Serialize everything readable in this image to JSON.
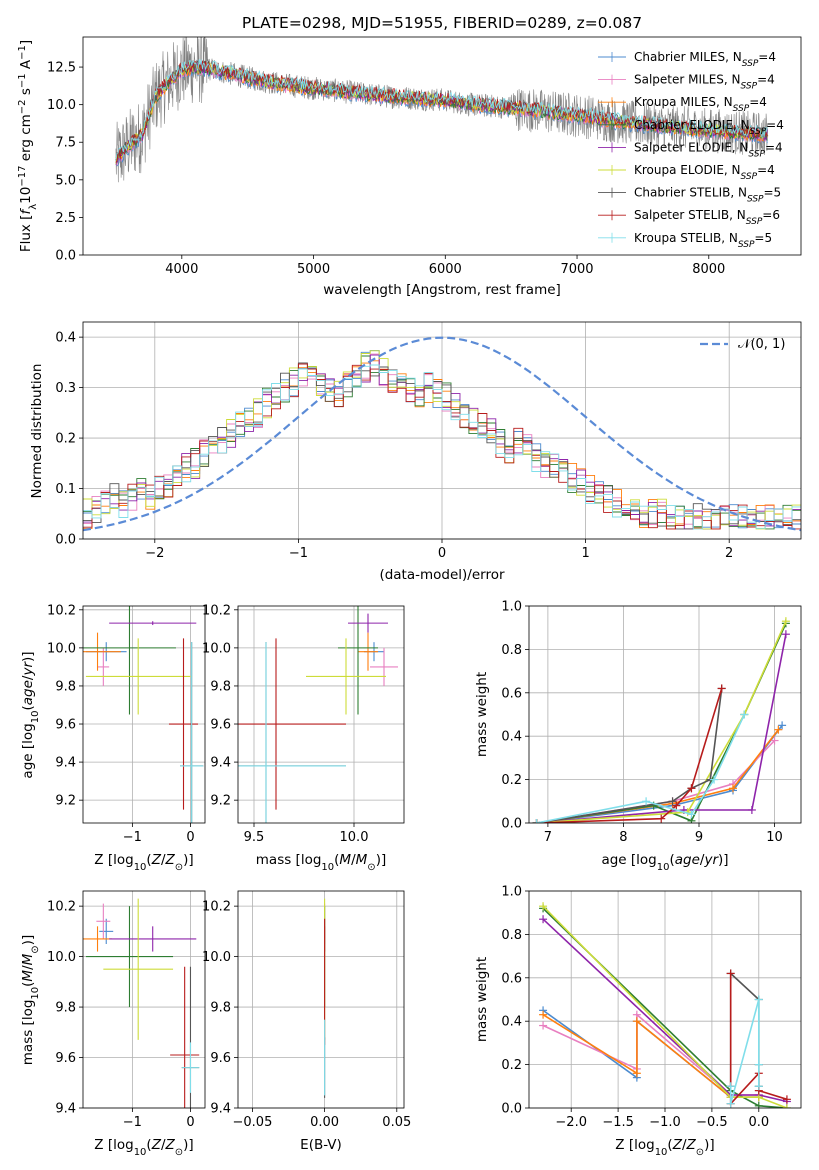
{
  "colors": {
    "chabrier_miles": "#4c8bcf",
    "salpeter_miles": "#e87fc0",
    "kroupa_miles": "#ff7f0e",
    "chabrier_elodie": "#2e7d32",
    "salpeter_elodie": "#8e24aa",
    "kroupa_elodie": "#cddc39",
    "chabrier_stelib": "#555555",
    "salpeter_stelib": "#b71c1c",
    "kroupa_stelib": "#80deea",
    "observed": "#808080",
    "gaussian": "#5b8bd6"
  },
  "chart_data": [
    {
      "type": "line",
      "title": "PLATE=0298, MJD=51955, FIBERID=0289, z=0.087",
      "xlabel": "wavelength [Angstrom, rest frame]",
      "ylabel": "Flux [f_λ 10^-17 erg cm^-2 s^-1 A^-1]",
      "ylabel_parts": [
        "Flux [",
        "f",
        "λ",
        "10",
        "−17",
        " erg cm",
        "−2",
        " s",
        "−1",
        " A",
        "−1",
        "]"
      ],
      "xlim": [
        3250,
        8700
      ],
      "ylim": [
        0,
        14.5
      ],
      "xticks": [
        4000,
        5000,
        6000,
        7000,
        8000
      ],
      "yticks": [
        0.0,
        2.5,
        5.0,
        7.5,
        10.0,
        12.5
      ],
      "series_names": [
        "Chabrier MILES, N_SSP=4",
        "Salpeter MILES, N_SSP=4",
        "Kroupa MILES, N_SSP=4",
        "Chabrier ELODIE, N_SSP=4",
        "Salpeter ELODIE, N_SSP=4",
        "Kroupa ELODIE, N_SSP=4",
        "Chabrier STELIB, N_SSP=5",
        "Salpeter STELIB, N_SSP=6",
        "Kroupa STELIB, N_SSP=5"
      ],
      "legend": [
        {
          "base": "Chabrier MILES, N",
          "sub": "SSP",
          "tail": "=4",
          "color_key": "chabrier_miles"
        },
        {
          "base": "Salpeter MILES, N",
          "sub": "SSP",
          "tail": "=4",
          "color_key": "salpeter_miles"
        },
        {
          "base": "Kroupa MILES, N",
          "sub": "SSP",
          "tail": "=4",
          "color_key": "kroupa_miles"
        },
        {
          "base": "Chabrier ELODIE, N",
          "sub": "SSP",
          "tail": "=4",
          "color_key": "chabrier_elodie"
        },
        {
          "base": "Salpeter ELODIE, N",
          "sub": "SSP",
          "tail": "=4",
          "color_key": "salpeter_elodie"
        },
        {
          "base": "Kroupa ELODIE, N",
          "sub": "SSP",
          "tail": "=4",
          "color_key": "kroupa_elodie"
        },
        {
          "base": "Chabrier STELIB, N",
          "sub": "SSP",
          "tail": "=5",
          "color_key": "chabrier_stelib"
        },
        {
          "base": "Salpeter STELIB, N",
          "sub": "SSP",
          "tail": "=6",
          "color_key": "salpeter_stelib"
        },
        {
          "base": "Kroupa STELIB, N",
          "sub": "SSP",
          "tail": "=5",
          "color_key": "kroupa_stelib"
        }
      ],
      "legend_position": "upper right",
      "grid": false,
      "observed_range": [
        3500,
        8450
      ],
      "model_curve": {
        "x": [
          3500,
          3600,
          3700,
          3800,
          3900,
          4000,
          4100,
          4200,
          4400,
          4600,
          4800,
          5000,
          5200,
          5500,
          5800,
          6000,
          6200,
          6500,
          6800,
          7000,
          7300,
          7600,
          8000,
          8300,
          8450
        ],
        "y": [
          6.3,
          7.3,
          8.0,
          10.5,
          11.5,
          12.3,
          12.5,
          12.4,
          12.0,
          11.6,
          11.3,
          11.1,
          10.9,
          10.6,
          10.4,
          10.3,
          10.0,
          9.8,
          9.5,
          9.3,
          8.9,
          8.6,
          8.3,
          8.1,
          8.0
        ]
      }
    },
    {
      "type": "step",
      "xlabel": "(data-model)/error",
      "ylabel": "Normed distribution",
      "xlim": [
        -2.5,
        2.5
      ],
      "ylim": [
        0,
        0.43
      ],
      "xticks": [
        -2,
        -1,
        0,
        1,
        2
      ],
      "yticks": [
        0.0,
        0.1,
        0.2,
        0.3,
        0.4
      ],
      "grid": true,
      "legend": [
        "𝒩(0, 1)"
      ],
      "legend_position": "upper right",
      "bin_width": 0.1,
      "bin_start": -2.5,
      "base_histogram": [
        0.05,
        0.06,
        0.07,
        0.08,
        0.07,
        0.08,
        0.09,
        0.08,
        0.1,
        0.11,
        0.12,
        0.14,
        0.15,
        0.17,
        0.18,
        0.2,
        0.21,
        0.23,
        0.24,
        0.25,
        0.27,
        0.28,
        0.3,
        0.31,
        0.32,
        0.32,
        0.31,
        0.3,
        0.29,
        0.31,
        0.33,
        0.34,
        0.35,
        0.33,
        0.31,
        0.3,
        0.29,
        0.28,
        0.3,
        0.29,
        0.28,
        0.26,
        0.24,
        0.23,
        0.22,
        0.21,
        0.19,
        0.18,
        0.19,
        0.18,
        0.16,
        0.15,
        0.14,
        0.13,
        0.12,
        0.11,
        0.1,
        0.09,
        0.08,
        0.07,
        0.06,
        0.06,
        0.05,
        0.05,
        0.05,
        0.04,
        0.04,
        0.04,
        0.04,
        0.04,
        0.04,
        0.04,
        0.04,
        0.04,
        0.04,
        0.04,
        0.04,
        0.04,
        0.04,
        0.04
      ]
    },
    {
      "type": "errorbar",
      "xlabel": "Z [log10(Z/Z⊙)]",
      "ylabel": "age [log10(age/yr)]",
      "xlim": [
        -1.85,
        0.25
      ],
      "ylim": [
        9.08,
        10.22
      ],
      "xticks": [
        -1,
        0
      ],
      "yticks": [
        9.2,
        9.4,
        9.6,
        9.8,
        10.0,
        10.2
      ],
      "grid": true,
      "points": [
        {
          "k": "chabrier_miles",
          "x": -1.45,
          "xerr": 0.35,
          "y": 9.98,
          "yerr": 0.05
        },
        {
          "k": "salpeter_miles",
          "x": -1.5,
          "xerr": 0.1,
          "y": 9.9,
          "yerr": 0.1
        },
        {
          "k": "kroupa_miles",
          "x": -1.6,
          "xerr": 0.4,
          "y": 9.98,
          "yerr": 0.1
        },
        {
          "k": "chabrier_elodie",
          "x": -1.05,
          "xerr": 0.8,
          "y": 10.0,
          "yerr": 0.35
        },
        {
          "k": "salpeter_elodie",
          "x": -0.65,
          "xerr": 0.75,
          "y": 10.13,
          "yerr": 0.01
        },
        {
          "k": "kroupa_elodie",
          "x": -0.9,
          "xerr": 0.9,
          "y": 9.85,
          "yerr": 0.2
        },
        {
          "k": "chabrier_stelib",
          "x": 0.02,
          "xerr": 0.2,
          "y": 9.38,
          "yerr": 0.65
        },
        {
          "k": "salpeter_stelib",
          "x": -0.12,
          "xerr": 0.25,
          "y": 9.6,
          "yerr": 0.45
        },
        {
          "k": "kroupa_stelib",
          "x": 0.02,
          "xerr": 0.2,
          "y": 9.38,
          "yerr": 0.65
        }
      ]
    },
    {
      "type": "errorbar",
      "xlabel": "mass [log10(M/M⊙)]",
      "ylabel": "",
      "xlim": [
        9.42,
        10.25
      ],
      "ylim": [
        9.08,
        10.22
      ],
      "xticks": [
        9.5,
        10.0
      ],
      "yticks": [
        9.2,
        9.4,
        9.6,
        9.8,
        10.0,
        10.2
      ],
      "grid": true,
      "points": [
        {
          "k": "chabrier_miles",
          "x": 10.1,
          "xerr": 0.05,
          "y": 9.98,
          "yerr": 0.05
        },
        {
          "k": "salpeter_miles",
          "x": 10.15,
          "xerr": 0.07,
          "y": 9.9,
          "yerr": 0.1
        },
        {
          "k": "kroupa_miles",
          "x": 10.07,
          "xerr": 0.05,
          "y": 9.98,
          "yerr": 0.1
        },
        {
          "k": "chabrier_elodie",
          "x": 10.02,
          "xerr": 0.1,
          "y": 10.0,
          "yerr": 0.35
        },
        {
          "k": "salpeter_elodie",
          "x": 10.07,
          "xerr": 0.1,
          "y": 10.13,
          "yerr": 0.05
        },
        {
          "k": "kroupa_elodie",
          "x": 9.96,
          "xerr": 0.2,
          "y": 9.85,
          "yerr": 0.2
        },
        {
          "k": "chabrier_stelib",
          "x": 9.56,
          "xerr": 0.4,
          "y": 9.38,
          "yerr": 0.65
        },
        {
          "k": "salpeter_stelib",
          "x": 9.61,
          "xerr": 0.35,
          "y": 9.6,
          "yerr": 0.45
        },
        {
          "k": "kroupa_stelib",
          "x": 9.56,
          "xerr": 0.4,
          "y": 9.38,
          "yerr": 0.65
        }
      ]
    },
    {
      "type": "line",
      "xlabel": "age [log10(age/yr)]",
      "ylabel": "mass weight",
      "xlim": [
        6.75,
        10.35
      ],
      "ylim": [
        0,
        1.0
      ],
      "xticks": [
        7,
        8,
        9,
        10
      ],
      "yticks": [
        0.0,
        0.2,
        0.4,
        0.6,
        0.8,
        1.0
      ],
      "grid": true,
      "series": [
        {
          "k": "chabrier_miles",
          "x": [
            6.85,
            8.65,
            9.45,
            10.1
          ],
          "y": [
            0.0,
            0.08,
            0.15,
            0.45
          ]
        },
        {
          "k": "salpeter_miles",
          "x": [
            6.85,
            8.65,
            9.45,
            10.0
          ],
          "y": [
            0.0,
            0.1,
            0.18,
            0.38
          ]
        },
        {
          "k": "kroupa_miles",
          "x": [
            6.85,
            8.65,
            9.45,
            10.05
          ],
          "y": [
            0.0,
            0.09,
            0.16,
            0.43
          ]
        },
        {
          "k": "chabrier_elodie",
          "x": [
            6.85,
            8.4,
            8.9,
            9.6,
            10.15
          ],
          "y": [
            0.0,
            0.08,
            0.01,
            0.5,
            0.92
          ]
        },
        {
          "k": "salpeter_elodie",
          "x": [
            6.85,
            8.8,
            9.7,
            10.15
          ],
          "y": [
            0.0,
            0.06,
            0.06,
            0.87
          ]
        },
        {
          "k": "kroupa_elodie",
          "x": [
            6.85,
            8.85,
            9.6,
            10.15
          ],
          "y": [
            0.0,
            0.05,
            0.5,
            0.93
          ]
        },
        {
          "k": "chabrier_stelib",
          "x": [
            6.85,
            8.65,
            8.9,
            9.15,
            9.3
          ],
          "y": [
            0.0,
            0.1,
            0.16,
            0.2,
            0.62
          ]
        },
        {
          "k": "salpeter_stelib",
          "x": [
            6.85,
            8.5,
            8.7,
            8.9,
            9.3
          ],
          "y": [
            0.0,
            0.02,
            0.08,
            0.16,
            0.62
          ]
        },
        {
          "k": "kroupa_stelib",
          "x": [
            6.85,
            8.3,
            8.9,
            9.2,
            9.6
          ],
          "y": [
            0.0,
            0.1,
            0.04,
            0.2,
            0.5
          ]
        }
      ]
    },
    {
      "type": "errorbar",
      "xlabel": "Z [log10(Z/Z⊙)]",
      "ylabel": "mass [log10(M/M⊙)]",
      "xlim": [
        -1.85,
        0.25
      ],
      "ylim": [
        9.4,
        10.26
      ],
      "xticks": [
        -1,
        0
      ],
      "yticks": [
        9.4,
        9.6,
        9.8,
        10.0,
        10.2
      ],
      "grid": true,
      "points": [
        {
          "k": "chabrier_miles",
          "x": -1.45,
          "xerr": 0.12,
          "y": 10.1,
          "yerr": 0.05
        },
        {
          "k": "salpeter_miles",
          "x": -1.5,
          "xerr": 0.12,
          "y": 10.14,
          "yerr": 0.07
        },
        {
          "k": "kroupa_miles",
          "x": -1.6,
          "xerr": 0.25,
          "y": 10.07,
          "yerr": 0.05
        },
        {
          "k": "chabrier_elodie",
          "x": -1.05,
          "xerr": 0.75,
          "y": 10.0,
          "yerr": 0.2
        },
        {
          "k": "salpeter_elodie",
          "x": -0.65,
          "xerr": 0.75,
          "y": 10.07,
          "yerr": 0.05
        },
        {
          "k": "kroupa_elodie",
          "x": -0.9,
          "xerr": 0.6,
          "y": 9.95,
          "yerr": 0.28
        },
        {
          "k": "chabrier_stelib",
          "x": 0.0,
          "xerr": 0.15,
          "y": 9.56,
          "yerr": 0.4
        },
        {
          "k": "salpeter_stelib",
          "x": -0.1,
          "xerr": 0.25,
          "y": 9.61,
          "yerr": 0.35
        },
        {
          "k": "kroupa_stelib",
          "x": 0.0,
          "xerr": 0.15,
          "y": 9.56,
          "yerr": 0.1
        }
      ]
    },
    {
      "type": "errorbar",
      "xlabel": "E(B-V)",
      "ylabel": "",
      "xlim": [
        -0.06,
        0.055
      ],
      "ylim": [
        9.4,
        10.26
      ],
      "xticks": [
        -0.05,
        0.0,
        0.05
      ],
      "yticks": [
        9.4,
        9.6,
        9.8,
        10.0,
        10.2
      ],
      "grid": true,
      "points": [
        {
          "k": "chabrier_miles",
          "x": 0.0,
          "xerr": 0.0,
          "y": 10.1,
          "yerr": 0.05
        },
        {
          "k": "salpeter_miles",
          "x": 0.0,
          "xerr": 0.0,
          "y": 10.14,
          "yerr": 0.07
        },
        {
          "k": "kroupa_miles",
          "x": 0.0,
          "xerr": 0.0,
          "y": 10.07,
          "yerr": 0.05
        },
        {
          "k": "chabrier_elodie",
          "x": 0.0,
          "xerr": 0.0,
          "y": 10.0,
          "yerr": 0.2
        },
        {
          "k": "salpeter_elodie",
          "x": 0.0,
          "xerr": 0.0,
          "y": 10.07,
          "yerr": 0.05
        },
        {
          "k": "kroupa_elodie",
          "x": 0.0,
          "xerr": 0.0,
          "y": 9.95,
          "yerr": 0.28
        },
        {
          "k": "chabrier_stelib",
          "x": 0.0,
          "xerr": 0.0,
          "y": 9.56,
          "yerr": 0.12
        },
        {
          "k": "salpeter_stelib",
          "x": 0.0,
          "xerr": 0.0,
          "y": 9.9,
          "yerr": 0.25
        },
        {
          "k": "kroupa_stelib",
          "x": 0.0,
          "xerr": 0.0,
          "y": 9.6,
          "yerr": 0.15
        }
      ]
    },
    {
      "type": "line",
      "xlabel": "Z [log10(Z/Z⊙)]",
      "ylabel": "mass weight",
      "xlim": [
        -2.45,
        0.45
      ],
      "ylim": [
        0,
        1.0
      ],
      "xticks": [
        -2.0,
        -1.5,
        -1.0,
        -0.5,
        0.0
      ],
      "yticks": [
        0.0,
        0.2,
        0.4,
        0.6,
        0.8,
        1.0
      ],
      "grid": true,
      "series": [
        {
          "k": "chabrier_miles",
          "x": [
            -2.3,
            -1.3,
            -1.3,
            -0.3,
            0.0
          ],
          "y": [
            0.45,
            0.14,
            0.4,
            0.05,
            0.05
          ]
        },
        {
          "k": "salpeter_miles",
          "x": [
            -2.3,
            -1.3,
            -1.3,
            -0.3,
            0.0
          ],
          "y": [
            0.38,
            0.18,
            0.43,
            0.06,
            0.06
          ]
        },
        {
          "k": "kroupa_miles",
          "x": [
            -2.3,
            -1.3,
            -1.3,
            -0.3,
            0.0
          ],
          "y": [
            0.43,
            0.16,
            0.4,
            0.05,
            0.05
          ]
        },
        {
          "k": "chabrier_elodie",
          "x": [
            -2.3,
            -0.3,
            0.0,
            0.3
          ],
          "y": [
            0.92,
            0.08,
            0.01,
            0.0
          ]
        },
        {
          "k": "salpeter_elodie",
          "x": [
            -2.3,
            -0.3,
            0.0,
            0.3
          ],
          "y": [
            0.87,
            0.06,
            0.06,
            0.03
          ]
        },
        {
          "k": "kroupa_elodie",
          "x": [
            -2.3,
            -0.3,
            0.0,
            0.3
          ],
          "y": [
            0.93,
            0.05,
            0.05,
            0.0
          ]
        },
        {
          "k": "chabrier_stelib",
          "x": [
            -0.3,
            -0.3,
            0.0,
            0.0,
            0.0
          ],
          "y": [
            0.1,
            0.62,
            0.5,
            0.2,
            0.1
          ]
        },
        {
          "k": "salpeter_stelib",
          "x": [
            -0.3,
            -0.3,
            0.0,
            0.0,
            0.3
          ],
          "y": [
            0.62,
            0.02,
            0.16,
            0.08,
            0.04
          ]
        },
        {
          "k": "kroupa_stelib",
          "x": [
            -0.3,
            -0.3,
            0.0,
            0.0,
            0.0
          ],
          "y": [
            0.1,
            0.02,
            0.5,
            0.2,
            0.1
          ]
        }
      ]
    }
  ]
}
